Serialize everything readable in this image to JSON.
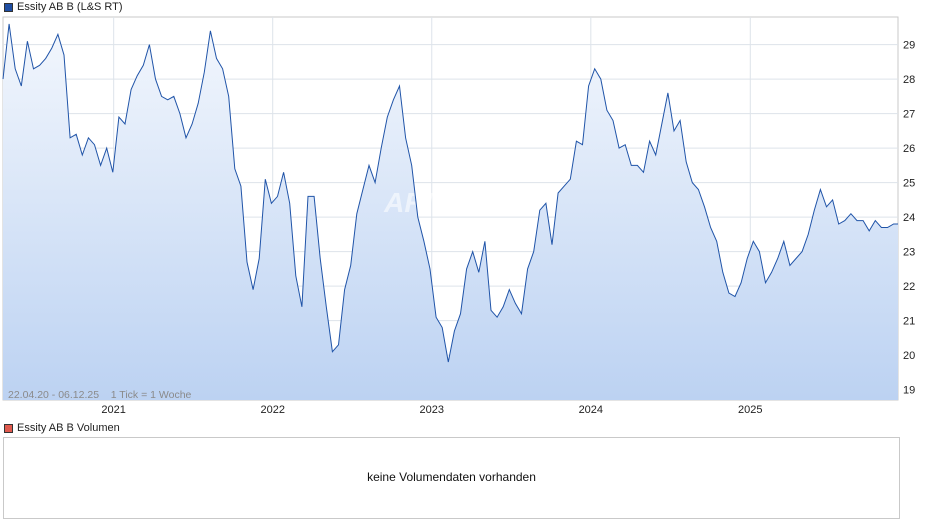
{
  "price_legend": {
    "label": "Essity AB B (L&S RT)",
    "color": "#1f4ea3"
  },
  "volume_legend": {
    "label": "Essity AB B Volumen",
    "color": "#e05a4e"
  },
  "volume_panel": {
    "message": "keine Volumendaten vorhanden"
  },
  "watermark": "ARIVA.DE",
  "chart_data": {
    "type": "area",
    "title": "Essity AB B (L&S RT)",
    "info_label": "22.04.20 - 06.12.25    1 Tick = 1 Woche",
    "x_tick_labels": [
      "2021",
      "2022",
      "2023",
      "2024",
      "2025"
    ],
    "y_tick_labels": [
      "19",
      "20",
      "21",
      "22",
      "23",
      "24",
      "25",
      "26",
      "27",
      "28",
      "29"
    ],
    "ylim": [
      18.7,
      29.8
    ],
    "grid": true,
    "line_color": "#2054a8",
    "fill_top_color": "#f3f7fd",
    "fill_bottom_color": "#bcd2f2",
    "series": [
      {
        "x": [
          "2020-04-22",
          "2020-05-06",
          "2020-05-20",
          "2020-06-03",
          "2020-06-17",
          "2020-07-01",
          "2020-07-15",
          "2020-07-29",
          "2020-08-12",
          "2020-08-26",
          "2020-09-09",
          "2020-09-23",
          "2020-10-07",
          "2020-10-21",
          "2020-11-04",
          "2020-11-18",
          "2020-12-02",
          "2020-12-16",
          "2020-12-30",
          "2021-01-13",
          "2021-01-27",
          "2021-02-10",
          "2021-02-24",
          "2021-03-10",
          "2021-03-24",
          "2021-04-07",
          "2021-04-21",
          "2021-05-05",
          "2021-05-19",
          "2021-06-02",
          "2021-06-16",
          "2021-06-30",
          "2021-07-14",
          "2021-07-28",
          "2021-08-11",
          "2021-08-25",
          "2021-09-08",
          "2021-09-22",
          "2021-10-06",
          "2021-10-20",
          "2021-11-03",
          "2021-11-17",
          "2021-12-01",
          "2021-12-15",
          "2021-12-29",
          "2022-01-12",
          "2022-01-26",
          "2022-02-09",
          "2022-02-23",
          "2022-03-09",
          "2022-03-23",
          "2022-04-06",
          "2022-04-20",
          "2022-05-04",
          "2022-05-18",
          "2022-06-01",
          "2022-06-15",
          "2022-06-29",
          "2022-07-13",
          "2022-07-27",
          "2022-08-10",
          "2022-08-24",
          "2022-09-07",
          "2022-09-21",
          "2022-10-05",
          "2022-10-19",
          "2022-11-02",
          "2022-11-16",
          "2022-11-30",
          "2022-12-14",
          "2022-12-28",
          "2023-01-11",
          "2023-01-25",
          "2023-02-08",
          "2023-02-22",
          "2023-03-08",
          "2023-03-22",
          "2023-04-05",
          "2023-04-19",
          "2023-05-03",
          "2023-05-17",
          "2023-05-31",
          "2023-06-14",
          "2023-06-28",
          "2023-07-12",
          "2023-07-26",
          "2023-08-09",
          "2023-08-23",
          "2023-09-06",
          "2023-09-20",
          "2023-10-04",
          "2023-10-18",
          "2023-11-01",
          "2023-11-15",
          "2023-11-29",
          "2023-12-13",
          "2023-12-27",
          "2024-01-10",
          "2024-01-24",
          "2024-02-07",
          "2024-02-21",
          "2024-03-06",
          "2024-03-20",
          "2024-04-03",
          "2024-04-17",
          "2024-05-01",
          "2024-05-15",
          "2024-05-29",
          "2024-06-12",
          "2024-06-26",
          "2024-07-10",
          "2024-07-24",
          "2024-08-07",
          "2024-08-21",
          "2024-09-04",
          "2024-09-18",
          "2024-10-02",
          "2024-10-16",
          "2024-10-30",
          "2024-11-13",
          "2024-11-27",
          "2024-12-11",
          "2024-12-25",
          "2025-01-08",
          "2025-01-22",
          "2025-02-05",
          "2025-02-19",
          "2025-03-05",
          "2025-03-19",
          "2025-04-02",
          "2025-04-16",
          "2025-04-30",
          "2025-05-14",
          "2025-05-28",
          "2025-06-11",
          "2025-06-25",
          "2025-07-09",
          "2025-07-23",
          "2025-08-06",
          "2025-08-20",
          "2025-09-03",
          "2025-09-17",
          "2025-10-01",
          "2025-10-15",
          "2025-10-29",
          "2025-11-12",
          "2025-11-26",
          "2025-12-06"
        ],
        "values": [
          28.0,
          29.6,
          28.3,
          27.8,
          29.1,
          28.3,
          28.4,
          28.6,
          28.9,
          29.3,
          28.7,
          26.3,
          26.4,
          25.8,
          26.3,
          26.1,
          25.5,
          26.0,
          25.3,
          26.9,
          26.7,
          27.7,
          28.1,
          28.4,
          29.0,
          28.0,
          27.5,
          27.4,
          27.5,
          27.0,
          26.3,
          26.7,
          27.3,
          28.2,
          29.4,
          28.6,
          28.3,
          27.5,
          25.4,
          24.9,
          22.7,
          21.9,
          22.8,
          25.1,
          24.4,
          24.6,
          25.3,
          24.4,
          22.3,
          21.4,
          24.6,
          24.6,
          22.8,
          21.4,
          20.1,
          20.3,
          21.9,
          22.6,
          24.1,
          24.8,
          25.5,
          25.0,
          26.0,
          26.9,
          27.4,
          27.8,
          26.3,
          25.5,
          24.0,
          23.3,
          22.5,
          21.1,
          20.8,
          19.8,
          20.7,
          21.2,
          22.5,
          23.0,
          22.4,
          23.3,
          21.3,
          21.1,
          21.4,
          21.9,
          21.5,
          21.2,
          22.5,
          23.0,
          24.2,
          24.4,
          23.2,
          24.7,
          24.9,
          25.1,
          26.2,
          26.1,
          27.8,
          28.3,
          28.0,
          27.1,
          26.8,
          26.0,
          26.1,
          25.5,
          25.5,
          25.3,
          26.2,
          25.8,
          26.7,
          27.6,
          26.5,
          26.8,
          25.6,
          25.0,
          24.8,
          24.3,
          23.7,
          23.3,
          22.4,
          21.8,
          21.7,
          22.1,
          22.8,
          23.3,
          23.0,
          22.1,
          22.4,
          22.8,
          23.3,
          22.6,
          22.8,
          23.0,
          23.5,
          24.2,
          24.8,
          24.3,
          24.5,
          23.8,
          23.9,
          24.1,
          23.9,
          23.9,
          23.6,
          23.9,
          23.7,
          23.7,
          23.8,
          23.8
        ]
      }
    ]
  }
}
